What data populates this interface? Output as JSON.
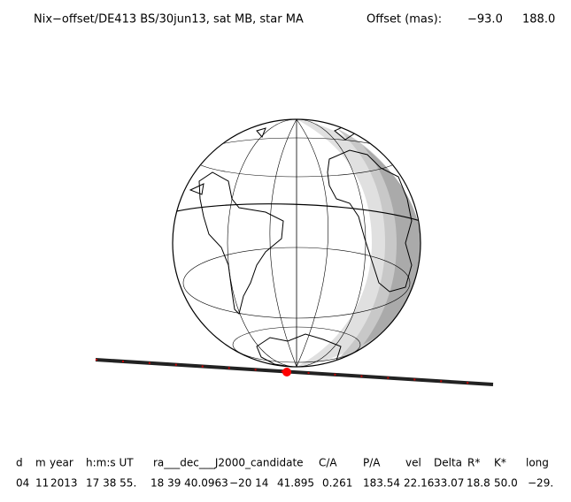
{
  "header": {
    "title": "Nix−offset/DE413 BS/30jun13, sat MB, star MA",
    "offset_label": "Offset (mas):",
    "offset_values": [
      "−93.0",
      "188.0"
    ]
  },
  "table": {
    "columns": [
      "d",
      "m",
      "year",
      "h:m:s UT",
      "ra___dec___J2000_candidate",
      "C/A",
      "P/A",
      "vel",
      "Delta",
      "R*",
      "K*",
      "long"
    ],
    "rows": [
      [
        "04",
        "11",
        "2013",
        "17 38 55.",
        "18 39 40.0963",
        "−20 14",
        "41.895",
        "0.261",
        "183.54",
        "22.16",
        "33.07",
        "18.8",
        "50.0",
        "−29."
      ]
    ]
  }
}
